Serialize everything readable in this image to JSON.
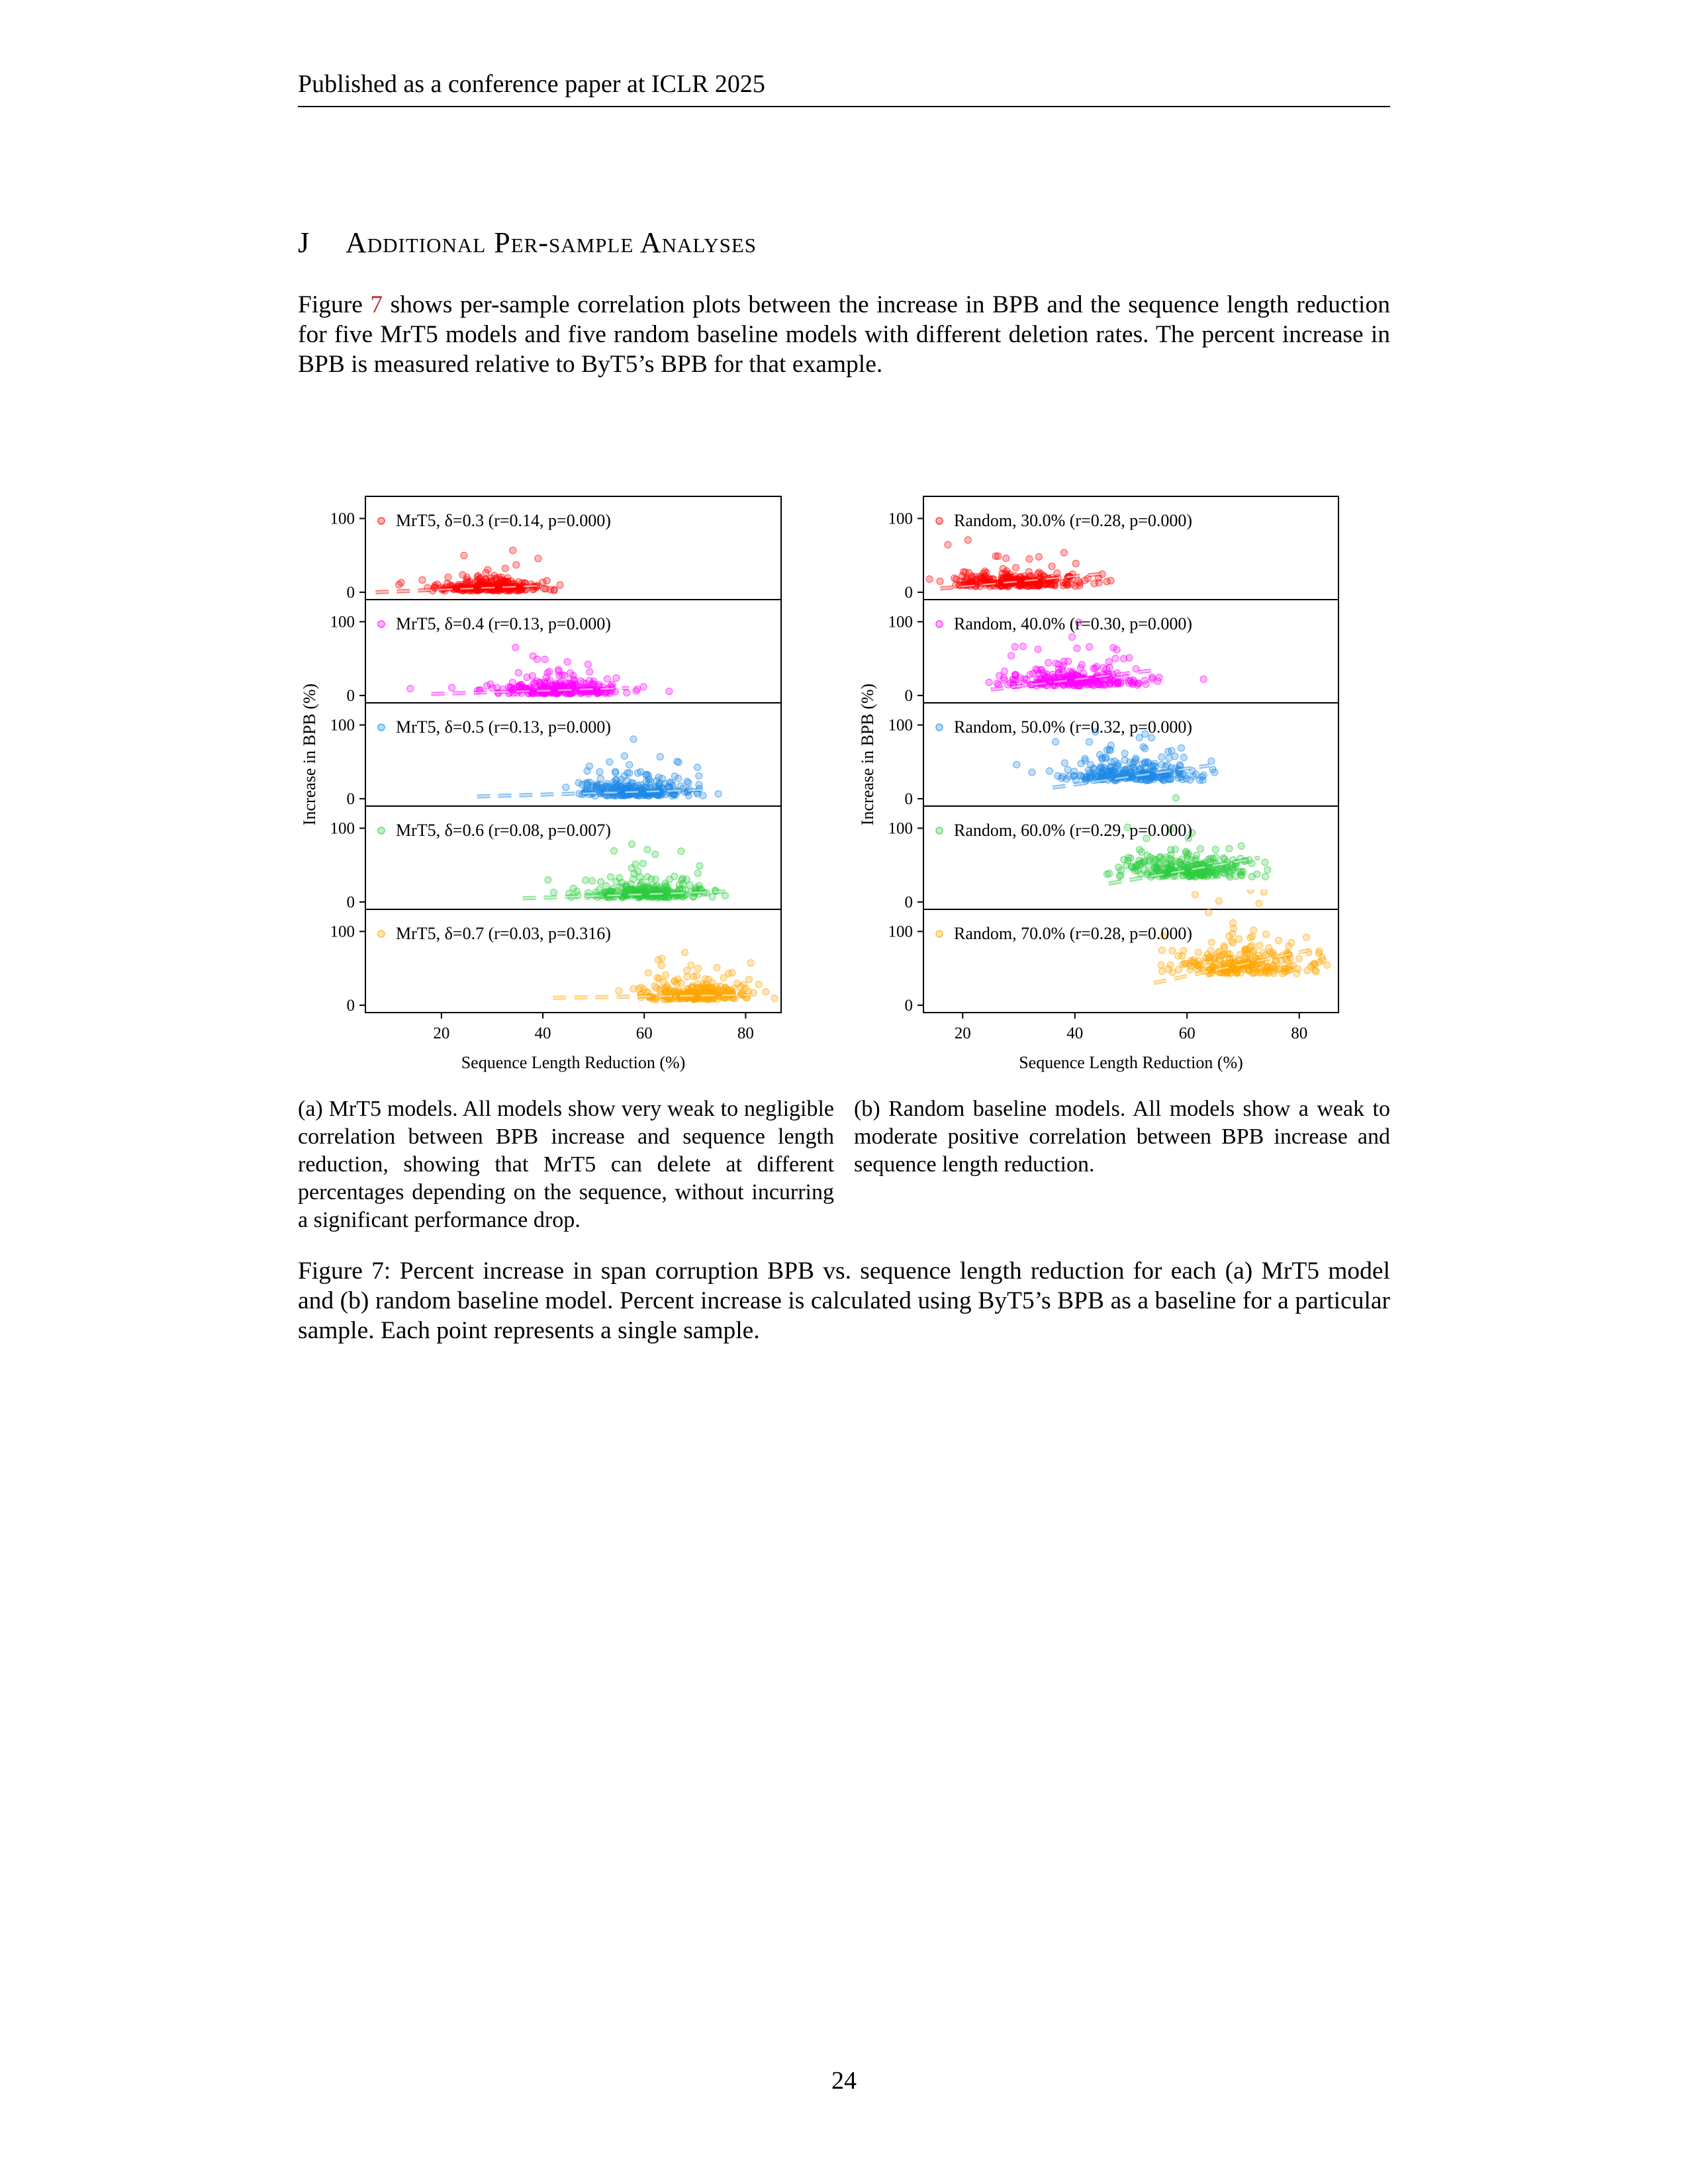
{
  "header": {
    "running_head": "Published as a conference paper at ICLR 2025"
  },
  "section": {
    "number": "J",
    "title": "Additional Per-sample Analyses"
  },
  "body": {
    "lead": "Figure ",
    "fig_ref": "7",
    "rest": " shows per-sample correlation plots between the increase in BPB and the sequence length reduction for five MrT5 models and five random baseline models with different deletion rates. The percent increase in BPB is measured relative to ByT5’s BPB for that example."
  },
  "chart_data": [
    {
      "type": "scatter",
      "panel": "a",
      "xlabel": "Sequence Length Reduction (%)",
      "ylabel": "Increase in BPB (%)",
      "x_ticks": [
        "20",
        "40",
        "60",
        "80"
      ],
      "y_ticks": [
        "0",
        "100"
      ],
      "xlim": [
        5,
        87
      ],
      "ylim": [
        -10,
        130
      ],
      "series": [
        {
          "name": "MrT5, δ=0.3 (r=0.14, p=0.000)",
          "color": "#ff0000",
          "x_center": 29,
          "x_spread": 5,
          "y_center": 5,
          "y_spread": 9,
          "trend_x": [
            7,
            40
          ],
          "trend_y": [
            0,
            9
          ]
        },
        {
          "name": "MrT5, δ=0.4 (r=0.13, p=0.000)",
          "color": "#ff00ff",
          "x_center": 42,
          "x_spread": 7,
          "y_center": 6,
          "y_spread": 10,
          "trend_x": [
            18,
            57
          ],
          "trend_y": [
            2,
            10
          ]
        },
        {
          "name": "MrT5, δ=0.5 (r=0.13, p=0.000)",
          "color": "#1e88e5",
          "x_center": 58,
          "x_spread": 6,
          "y_center": 8,
          "y_spread": 12,
          "trend_x": [
            27,
            72
          ],
          "trend_y": [
            3,
            12
          ]
        },
        {
          "name": "MrT5, δ=0.6 (r=0.08, p=0.007)",
          "color": "#2ecc40",
          "x_center": 61,
          "x_spread": 6,
          "y_center": 10,
          "y_spread": 12,
          "trend_x": [
            36,
            76
          ],
          "trend_y": [
            5,
            14
          ]
        },
        {
          "name": "MrT5, δ=0.7 (r=0.03, p=0.316)",
          "color": "#ffa500",
          "x_center": 70,
          "x_spread": 5,
          "y_center": 12,
          "y_spread": 13,
          "trend_x": [
            42,
            81
          ],
          "trend_y": [
            10,
            14
          ]
        }
      ]
    },
    {
      "type": "scatter",
      "panel": "b",
      "xlabel": "Sequence Length Reduction (%)",
      "ylabel": "Increase in BPB (%)",
      "x_ticks": [
        "20",
        "40",
        "60",
        "80"
      ],
      "y_ticks": [
        "0",
        "100"
      ],
      "xlim": [
        13,
        87
      ],
      "ylim": [
        -10,
        130
      ],
      "series": [
        {
          "name": "Random, 30.0%  (r=0.28, p=0.000)",
          "color": "#ff0000",
          "x_center": 30,
          "x_spread": 6,
          "y_center": 12,
          "y_spread": 12,
          "trend_x": [
            16,
            45
          ],
          "trend_y": [
            5,
            25
          ]
        },
        {
          "name": "Random, 40.0%  (r=0.30, p=0.000)",
          "color": "#ff00ff",
          "x_center": 40,
          "x_spread": 6,
          "y_center": 18,
          "y_spread": 14,
          "trend_x": [
            25,
            55
          ],
          "trend_y": [
            8,
            35
          ]
        },
        {
          "name": "Random, 50.0%  (r=0.32, p=0.000)",
          "color": "#1e88e5",
          "x_center": 50,
          "x_spread": 6,
          "y_center": 30,
          "y_spread": 16,
          "trend_x": [
            36,
            64
          ],
          "trend_y": [
            15,
            45
          ]
        },
        {
          "name": "Random, 60.0%  (r=0.29, p=0.000)",
          "color": "#2ecc40",
          "x_center": 60,
          "x_spread": 6,
          "y_center": 40,
          "y_spread": 18,
          "trend_x": [
            46,
            73
          ],
          "trend_y": [
            25,
            60
          ]
        },
        {
          "name": "Random, 70.0%  (r=0.28, p=0.000)",
          "color": "#ffa500",
          "x_center": 70,
          "x_spread": 6,
          "y_center": 50,
          "y_spread": 20,
          "trend_x": [
            54,
            82
          ],
          "trend_y": [
            30,
            75
          ]
        }
      ]
    }
  ],
  "subcaptions": {
    "a": "(a) MrT5 models. All models show very weak to negligible correlation between BPB increase and sequence length reduction, showing that MrT5 can delete at different percentages depending on the sequence, without incurring a significant performance drop.",
    "b": "(b) Random baseline models. All models show a weak to moderate positive correlation between BPB increase and sequence length reduction."
  },
  "figure_caption": "Figure 7: Percent increase in span corruption BPB vs. sequence length reduction for each (a) MrT5 model and (b) random baseline model. Percent increase is calculated using ByT5’s BPB as a baseline for a particular sample. Each point represents a single sample.",
  "page_number": "24"
}
